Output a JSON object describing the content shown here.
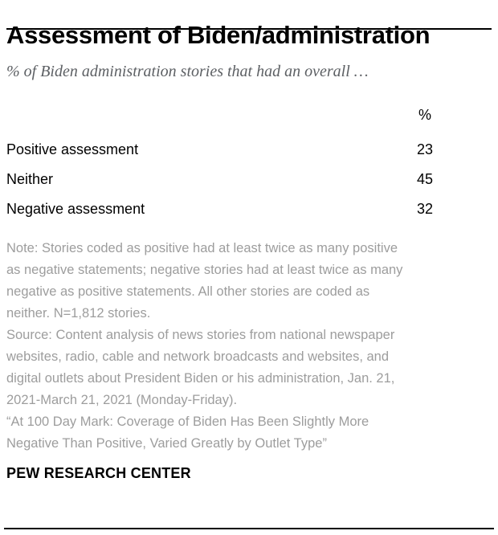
{
  "header": {
    "title": "Assessment of Biden/administration",
    "subtitle": "% of Biden administration stories that had an overall …"
  },
  "chart_data": {
    "type": "table",
    "title": "Assessment of Biden/administration",
    "subtitle": "% of Biden administration stories that had an overall …",
    "value_header": "%",
    "categories": [
      "Positive assessment",
      "Neither",
      "Negative assessment"
    ],
    "values": [
      23,
      45,
      32
    ],
    "layout": {
      "grid": false,
      "value_column_alignment": "centered near right edge"
    }
  },
  "table": {
    "value_header": "%",
    "rows": [
      {
        "label": "Positive assessment",
        "value": "23"
      },
      {
        "label": "Neither",
        "value": "45"
      },
      {
        "label": "Negative assessment",
        "value": "32"
      }
    ]
  },
  "footnotes": {
    "note": "Note: Stories coded as positive had at least twice as many positive as negative statements; negative stories had at least twice as many negative as positive statements. All other stories are coded as neither. N=1,812 stories.",
    "source": "Source: Content analysis of news stories from national newspaper websites, radio, cable and network broadcasts and websites, and digital outlets about President Biden or his administration, Jan. 21, 2021-March 21, 2021 (Monday-Friday).",
    "report_title": "“At 100 Day Mark: Coverage of Biden Has Been Slightly More Negative Than Positive, Varied Greatly by Outlet Type”"
  },
  "footer": {
    "brand": "PEW RESEARCH CENTER"
  },
  "colors": {
    "background": "#ffffff",
    "text": "#000000",
    "subtitle": "#5d6064",
    "note": "#9d9d9d",
    "rule": "#000000"
  }
}
